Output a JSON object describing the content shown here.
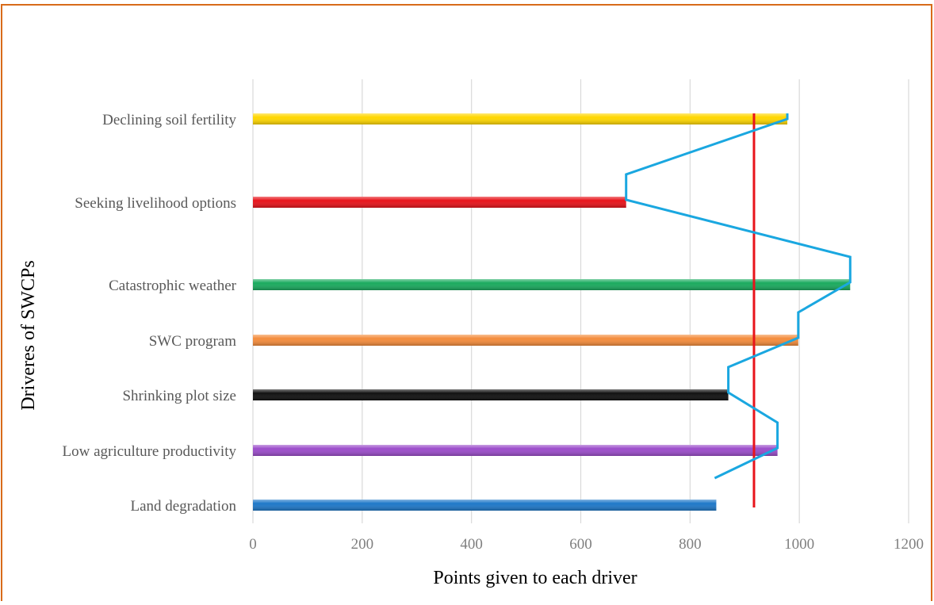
{
  "chart_data": {
    "type": "bar",
    "orientation": "horizontal",
    "title": "",
    "xlabel": "Points given to each driver",
    "ylabel": "Driveres of SWCPs",
    "xlim": [
      0,
      1200
    ],
    "x_ticks": [
      "0",
      "200",
      "400",
      "600",
      "800",
      "1000",
      "1200"
    ],
    "grid": "vertical",
    "legend": "none",
    "categories": [
      "Declining soil fertility",
      "Seeking  livelihood options",
      "Catastrophic weather",
      "SWC program",
      "Shrinking plot size",
      "Low agriculture productivity",
      "Land degradation"
    ],
    "values": [
      978,
      683,
      1093,
      998,
      870,
      960,
      848
    ],
    "bar_colors": [
      "#ffd700",
      "#e8141b",
      "#1aaa5e",
      "#f48c3c",
      "#111111",
      "#9b4dca",
      "#1f78c8"
    ],
    "line_series": {
      "color": "#1aa7e0",
      "values": [
        978,
        683,
        1093,
        998,
        870,
        960,
        848
      ]
    },
    "reference_line": {
      "value": 917,
      "color": "#e8141b"
    },
    "frame_color": "#d86b1a"
  }
}
